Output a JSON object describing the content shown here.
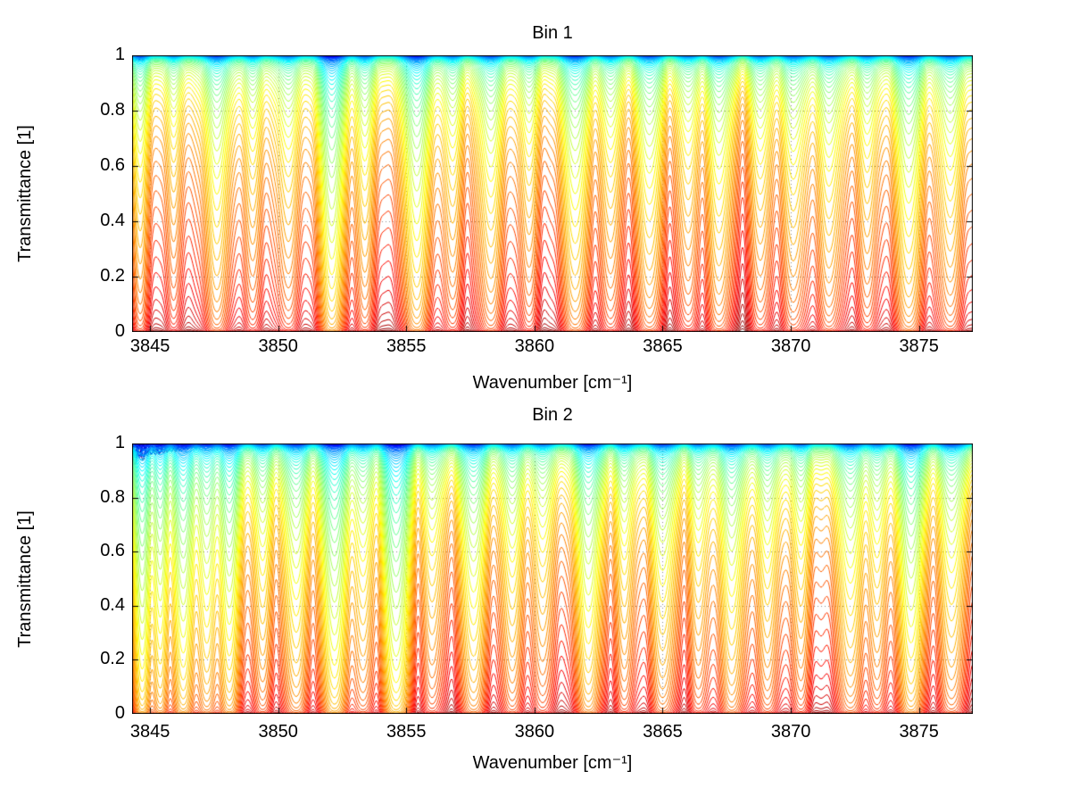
{
  "colors": {
    "background": "#ffffff",
    "axis": "#000000",
    "grid": "#555555",
    "colormap": "jet"
  },
  "chart_data": [
    {
      "type": "line",
      "title": "Bin 1",
      "xlabel": "Wavenumber [cm⁻¹]",
      "ylabel": "Transmittance [1]",
      "xlim": [
        3844.3,
        3877.1
      ],
      "ylim": [
        0,
        1
      ],
      "x_ticks": [
        3845,
        3850,
        3855,
        3860,
        3865,
        3870,
        3875
      ],
      "x_tick_labels": [
        "3845",
        "3850",
        "3855",
        "3860",
        "3865",
        "3870",
        "3875"
      ],
      "y_ticks": [
        0,
        0.2,
        0.4,
        0.6,
        0.8,
        1
      ],
      "y_tick_labels": [
        "0",
        "0.2",
        "0.4",
        "0.6",
        "0.8",
        "1"
      ],
      "grid": "dotted",
      "legend": "none",
      "series_model": {
        "description": "68 overlaid transmittance spectra T_i(v)=exp(-k_i*tau(v)), k_i=k0*g^i, colored with jet colormap from blue (weakest absorption, hugging T=1) to dark red (strongest absorption, saturated at T=0)",
        "n_curves": 68,
        "k0": 0.0009,
        "g": 1.18,
        "continuum": 0.06,
        "ripples": [
          {
            "period": 1.6,
            "amp": 0.05,
            "phase": 0.7
          },
          {
            "period": 0.72,
            "amp": 0.025,
            "phase": 2.3
          }
        ],
        "line_format": [
          "center_wavenumber",
          "optical_depth",
          "sigma"
        ],
        "absorption_lines": [
          [
            3844.6,
            0.45,
            0.2
          ],
          [
            3845.9,
            0.25,
            0.2
          ],
          [
            3847.6,
            0.65,
            0.3
          ],
          [
            3849.0,
            0.3,
            0.25
          ],
          [
            3850.4,
            0.35,
            0.3
          ],
          [
            3852.1,
            1.6,
            0.28
          ],
          [
            3853.4,
            0.4,
            0.25
          ],
          [
            3855.4,
            1.1,
            0.3
          ],
          [
            3856.8,
            0.35,
            0.25
          ],
          [
            3858.3,
            0.55,
            0.3
          ],
          [
            3859.8,
            0.3,
            0.25
          ],
          [
            3861.6,
            0.8,
            0.3
          ],
          [
            3863.0,
            0.35,
            0.25
          ],
          [
            3864.5,
            0.6,
            0.3
          ],
          [
            3866.0,
            0.3,
            0.25
          ],
          [
            3867.2,
            0.55,
            0.3
          ],
          [
            3868.8,
            0.35,
            0.25
          ],
          [
            3870.1,
            0.45,
            0.3
          ],
          [
            3871.5,
            0.5,
            0.3
          ],
          [
            3873.0,
            0.35,
            0.25
          ],
          [
            3874.6,
            0.9,
            0.3
          ],
          [
            3876.2,
            0.5,
            0.3
          ]
        ],
        "top_noise": {
          "base": 0.005,
          "left": 0.02
        }
      }
    },
    {
      "type": "line",
      "title": "Bin 2",
      "xlabel": "Wavenumber [cm⁻¹]",
      "ylabel": "Transmittance [1]",
      "xlim": [
        3844.3,
        3877.1
      ],
      "ylim": [
        0,
        1
      ],
      "x_ticks": [
        3845,
        3850,
        3855,
        3860,
        3865,
        3870,
        3875
      ],
      "x_tick_labels": [
        "3845",
        "3850",
        "3855",
        "3860",
        "3865",
        "3870",
        "3875"
      ],
      "y_ticks": [
        0,
        0.2,
        0.4,
        0.6,
        0.8,
        1
      ],
      "y_tick_labels": [
        "0",
        "0.2",
        "0.4",
        "0.6",
        "0.8",
        "1"
      ],
      "grid": "dotted",
      "legend": "none",
      "series_model": {
        "description": "68 overlaid transmittance spectra T_i(v)=exp(-k_i*tau(v)), k_i=k0*g^i, jet colormap; dense noisy blue/green cluster near T=1 at the left edge, deep absorption notches near 3852, 3854.6, 3862, 3874.7",
        "n_curves": 68,
        "k0": 0.0009,
        "g": 1.18,
        "continuum": 0.06,
        "ripples": [
          {
            "period": 1.5,
            "amp": 0.05,
            "phase": 1.9
          },
          {
            "period": 0.7,
            "amp": 0.03,
            "phase": 0.4
          }
        ],
        "line_format": [
          "center_wavenumber",
          "optical_depth",
          "sigma"
        ],
        "absorption_lines": [
          [
            3844.7,
            1.8,
            0.2
          ],
          [
            3845.4,
            1.2,
            0.2
          ],
          [
            3846.3,
            1.5,
            0.25
          ],
          [
            3847.2,
            0.9,
            0.25
          ],
          [
            3848.1,
            1.3,
            0.25
          ],
          [
            3849.4,
            0.5,
            0.25
          ],
          [
            3850.7,
            0.8,
            0.3
          ],
          [
            3852.2,
            1.7,
            0.3
          ],
          [
            3853.3,
            0.5,
            0.25
          ],
          [
            3854.6,
            2.2,
            0.3
          ],
          [
            3856.0,
            0.4,
            0.25
          ],
          [
            3857.6,
            0.9,
            0.3
          ],
          [
            3859.1,
            0.5,
            0.28
          ],
          [
            3860.3,
            0.4,
            0.25
          ],
          [
            3862.1,
            1.1,
            0.3
          ],
          [
            3863.5,
            0.4,
            0.25
          ],
          [
            3865.0,
            0.7,
            0.3
          ],
          [
            3866.4,
            0.4,
            0.25
          ],
          [
            3867.7,
            0.8,
            0.3
          ],
          [
            3869.1,
            0.5,
            0.28
          ],
          [
            3870.4,
            0.4,
            0.25
          ],
          [
            3872.3,
            0.7,
            0.3
          ],
          [
            3873.4,
            0.4,
            0.25
          ],
          [
            3874.7,
            1.3,
            0.3
          ],
          [
            3876.3,
            0.6,
            0.3
          ]
        ],
        "top_noise": {
          "base": 0.006,
          "left": 0.09
        }
      }
    }
  ]
}
